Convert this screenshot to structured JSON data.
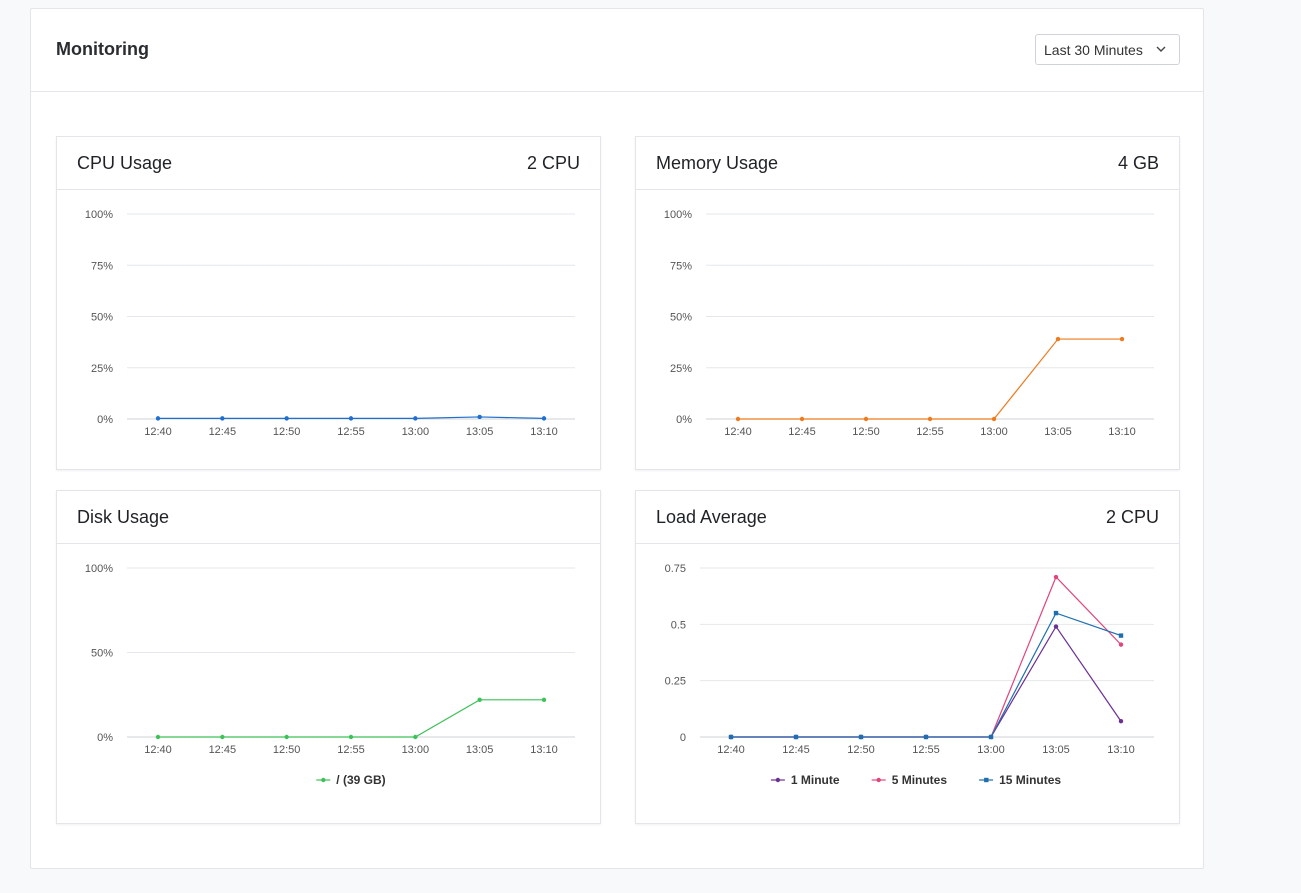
{
  "header": {
    "title": "Monitoring",
    "time_range": "Last 30 Minutes"
  },
  "panels": [
    {
      "id": "cpu",
      "title": "CPU Usage",
      "right": "2 CPU",
      "chart_data": {
        "type": "line",
        "x": [
          "12:40",
          "12:45",
          "12:50",
          "12:55",
          "13:00",
          "13:05",
          "13:10"
        ],
        "yticks": [
          "0%",
          "25%",
          "50%",
          "75%",
          "100%"
        ],
        "ylim": [
          0,
          100
        ],
        "series": [
          {
            "color": "#1f6fd1",
            "marker": "circle",
            "values": [
              0.3,
              0.3,
              0.3,
              0.3,
              0.3,
              1.0,
              0.3
            ]
          }
        ],
        "legend": false
      }
    },
    {
      "id": "memory",
      "title": "Memory Usage",
      "right": "4 GB",
      "chart_data": {
        "type": "line",
        "x": [
          "12:40",
          "12:45",
          "12:50",
          "12:55",
          "13:00",
          "13:05",
          "13:10"
        ],
        "yticks": [
          "0%",
          "25%",
          "50%",
          "75%",
          "100%"
        ],
        "ylim": [
          0,
          100
        ],
        "series": [
          {
            "color": "#ee7a1e",
            "marker": "circle",
            "values": [
              0,
              0,
              0,
              0,
              0,
              39,
              39
            ]
          }
        ],
        "legend": false
      }
    },
    {
      "id": "disk",
      "title": "Disk Usage",
      "right": "",
      "chart_data": {
        "type": "line",
        "x": [
          "12:40",
          "12:45",
          "12:50",
          "12:55",
          "13:00",
          "13:05",
          "13:10"
        ],
        "yticks": [
          "0%",
          "50%",
          "100%"
        ],
        "ylim": [
          0,
          100
        ],
        "series": [
          {
            "name": "/ (39 GB)",
            "color": "#3ec159",
            "marker": "circle",
            "values": [
              0,
              0,
              0,
              0,
              0,
              22,
              22
            ]
          }
        ],
        "legend": true
      }
    },
    {
      "id": "load",
      "title": "Load Average",
      "right": "2 CPU",
      "chart_data": {
        "type": "line",
        "x": [
          "12:40",
          "12:45",
          "12:50",
          "12:55",
          "13:00",
          "13:05",
          "13:10"
        ],
        "yticks": [
          "0",
          "0.25",
          "0.5",
          "0.75"
        ],
        "ylim": [
          0,
          0.75
        ],
        "series": [
          {
            "name": "1 Minute",
            "color": "#6c2f93",
            "marker": "circle",
            "values": [
              0,
              0,
              0,
              0,
              0,
              0.49,
              0.07
            ]
          },
          {
            "name": "5 Minutes",
            "color": "#e2457a",
            "marker": "circle",
            "values": [
              0,
              0,
              0,
              0,
              0,
              0.71,
              0.41
            ]
          },
          {
            "name": "15 Minutes",
            "color": "#1f6fb0",
            "marker": "square",
            "values": [
              0,
              0,
              0,
              0,
              0,
              0.55,
              0.45
            ]
          }
        ],
        "legend": true
      }
    }
  ]
}
